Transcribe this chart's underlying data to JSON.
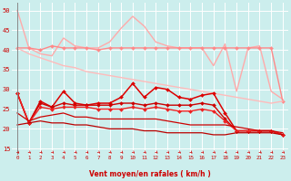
{
  "xlabel": "Vent moyen/en rafales ( km/h )",
  "bg_color": "#cceeed",
  "grid_color": "#ffffff",
  "xlim": [
    -0.5,
    23.5
  ],
  "ylim": [
    13.5,
    52
  ],
  "yticks": [
    15,
    20,
    25,
    30,
    35,
    40,
    45,
    50
  ],
  "xticks": [
    0,
    1,
    2,
    3,
    4,
    5,
    6,
    7,
    8,
    9,
    10,
    11,
    12,
    13,
    14,
    15,
    16,
    17,
    18,
    19,
    20,
    21,
    22,
    23
  ],
  "lines": [
    {
      "color": "#ffaaaa",
      "lw": 1.0,
      "marker": null,
      "values": [
        50,
        40.5,
        39,
        38.5,
        43,
        41,
        40.5,
        40.5,
        42,
        45.5,
        48.5,
        46,
        42,
        41,
        40.5,
        40.5,
        40.5,
        36,
        41.5,
        29.5,
        40.5,
        41,
        29.5,
        27.5
      ]
    },
    {
      "color": "#ff8888",
      "lw": 1.0,
      "marker": "D",
      "markersize": 2.0,
      "values": [
        40.5,
        40.5,
        40,
        41,
        40.5,
        40.5,
        40.5,
        40,
        40.5,
        40.5,
        40.5,
        40.5,
        40.5,
        40.5,
        40.5,
        40.5,
        40.5,
        40.5,
        40.5,
        40.5,
        40.5,
        40.5,
        40.5,
        27
      ]
    },
    {
      "color": "#ffbbbb",
      "lw": 1.0,
      "marker": null,
      "values": [
        40.5,
        39,
        38,
        37,
        36,
        35.5,
        34.5,
        34,
        33.5,
        33,
        32.5,
        32,
        31.5,
        31,
        30.5,
        30,
        29.5,
        29,
        28.5,
        28,
        27.5,
        27,
        26.5,
        27
      ]
    },
    {
      "color": "#dd0000",
      "lw": 1.1,
      "marker": "D",
      "markersize": 2.0,
      "values": [
        29,
        21.5,
        27,
        25.5,
        29.5,
        26.5,
        26,
        26.5,
        26.5,
        28,
        31.5,
        28,
        30.5,
        30,
        28,
        27.5,
        28.5,
        29,
        24,
        19.5,
        19.5,
        19.5,
        19.5,
        18.5
      ]
    },
    {
      "color": "#cc0000",
      "lw": 1.0,
      "marker": "D",
      "markersize": 2.0,
      "values": [
        29,
        21.5,
        26.5,
        25.5,
        26.5,
        26,
        26,
        26,
        26,
        26.5,
        26.5,
        26,
        26.5,
        26,
        26,
        26,
        26.5,
        26,
        22.5,
        19.5,
        19.5,
        19.5,
        19.5,
        18.5
      ]
    },
    {
      "color": "#ee2222",
      "lw": 1.0,
      "marker": "D",
      "markersize": 2.0,
      "values": [
        29,
        21.5,
        25.5,
        25,
        25.5,
        25.5,
        25.5,
        25,
        25,
        25,
        25.5,
        25,
        25.5,
        25,
        24.5,
        24.5,
        25,
        24.5,
        22,
        19.5,
        19.5,
        19.5,
        19.5,
        18.5
      ]
    },
    {
      "color": "#cc0000",
      "lw": 0.9,
      "marker": null,
      "values": [
        24,
        22,
        23,
        23.5,
        24,
        23,
        23,
        22.5,
        22.5,
        22.5,
        22.5,
        22.5,
        22.5,
        22,
        21.5,
        21,
        21,
        21,
        21,
        20.5,
        20,
        19.5,
        19.5,
        19
      ]
    },
    {
      "color": "#bb0000",
      "lw": 0.9,
      "marker": null,
      "values": [
        21,
        21.5,
        22,
        21.5,
        21.5,
        21,
        21,
        20.5,
        20,
        20,
        20,
        19.5,
        19.5,
        19,
        19,
        19,
        19,
        18.5,
        18.5,
        19,
        19,
        19,
        19,
        18.5
      ]
    }
  ]
}
